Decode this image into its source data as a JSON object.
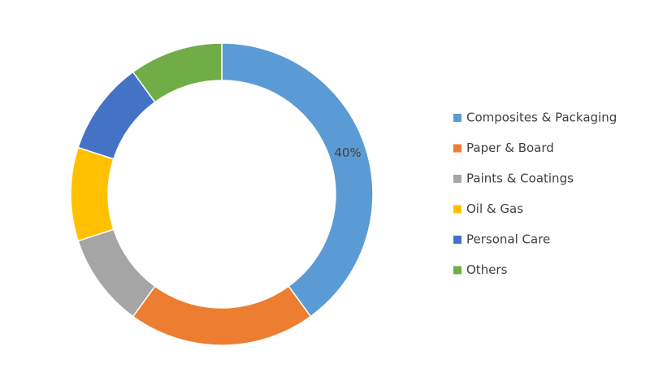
{
  "chart_data": {
    "type": "pie",
    "categories": [
      "Composites & Packaging",
      "Paper & Board",
      "Paints & Coatings",
      "Oil & Gas",
      "Personal Care",
      "Others"
    ],
    "values": [
      40,
      20,
      10,
      10,
      10,
      10
    ],
    "value_labels": [
      "40%",
      null,
      null,
      null,
      null,
      null
    ],
    "colors": [
      "#5b9bd5",
      "#ed7d31",
      "#a5a5a5",
      "#ffc000",
      "#4472c4",
      "#70ad47"
    ],
    "legend": "right"
  }
}
